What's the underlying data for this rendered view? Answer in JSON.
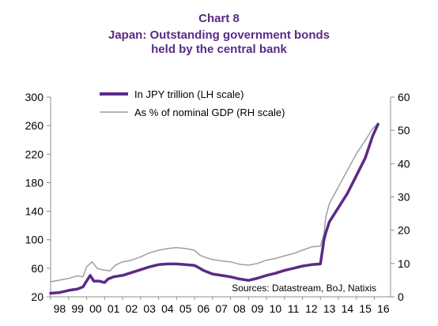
{
  "header": {
    "chart_label": "Chart 8",
    "title_line1": "Japan: Outstanding government bonds",
    "title_line2": "held by the central bank"
  },
  "source_note": "Sources: Datastream, BoJ, Natixis",
  "colors": {
    "title": "#5b2a86",
    "series_jpy": "#5b2a86",
    "series_gdp": "#9e9e9e",
    "axis": "#8c8c8c"
  },
  "chart_data": {
    "type": "line",
    "title": "Japan: Outstanding government bonds held by the central bank",
    "x_tick_labels": [
      "98",
      "99",
      "00",
      "01",
      "02",
      "03",
      "04",
      "05",
      "06",
      "07",
      "08",
      "09",
      "10",
      "11",
      "12",
      "13",
      "14",
      "15",
      "16"
    ],
    "xlim": [
      1998.0,
      2016.9
    ],
    "y_left": {
      "ylim": [
        20,
        300
      ],
      "ticks": [
        20,
        60,
        100,
        140,
        180,
        220,
        260,
        300
      ]
    },
    "y_right": {
      "ylim": [
        0,
        60
      ],
      "ticks": [
        0,
        10,
        20,
        30,
        40,
        50,
        60
      ]
    },
    "grid": false,
    "legend_position": "top-left",
    "series": [
      {
        "name": "In JPY trillion (LH scale)",
        "axis": "left",
        "color": "#5b2a86",
        "x": [
          1998.0,
          1998.5,
          1999.0,
          1999.5,
          1999.8,
          2000.0,
          2000.2,
          2000.4,
          2000.7,
          2001.0,
          2001.2,
          2001.5,
          2002.0,
          2002.5,
          2003.0,
          2003.5,
          2004.0,
          2004.5,
          2005.0,
          2005.5,
          2006.0,
          2006.3,
          2006.5,
          2007.0,
          2007.5,
          2008.0,
          2008.5,
          2009.0,
          2009.5,
          2010.0,
          2010.5,
          2011.0,
          2011.5,
          2012.0,
          2012.5,
          2013.0,
          2013.2,
          2013.3,
          2013.5,
          2014.0,
          2014.5,
          2015.0,
          2015.5,
          2015.9,
          2016.2
        ],
        "y": [
          25,
          26,
          29,
          31,
          34,
          42,
          50,
          42,
          42,
          40,
          45,
          48,
          50,
          54,
          58,
          62,
          65,
          66,
          66,
          65,
          64,
          60,
          57,
          52,
          50,
          48,
          45,
          43,
          46,
          50,
          53,
          57,
          60,
          63,
          65,
          66,
          100,
          110,
          125,
          145,
          165,
          190,
          215,
          245,
          262
        ]
      },
      {
        "name": "As % of nominal GDP (RH scale)",
        "axis": "right",
        "color": "#9e9e9e",
        "x": [
          1998.0,
          1998.5,
          1999.0,
          1999.5,
          1999.8,
          2000.0,
          2000.3,
          2000.6,
          2001.0,
          2001.3,
          2001.6,
          2002.0,
          2002.5,
          2003.0,
          2003.5,
          2004.0,
          2004.5,
          2005.0,
          2005.5,
          2006.0,
          2006.3,
          2006.6,
          2007.0,
          2007.5,
          2008.0,
          2008.5,
          2009.0,
          2009.5,
          2010.0,
          2010.5,
          2011.0,
          2011.5,
          2012.0,
          2012.5,
          2013.0,
          2013.2,
          2013.3,
          2013.5,
          2014.0,
          2014.5,
          2015.0,
          2015.5,
          2015.9,
          2016.2
        ],
        "y": [
          4.5,
          5,
          5.5,
          6.3,
          6,
          9,
          10.5,
          8.5,
          8,
          7.8,
          9.5,
          10.5,
          11,
          12,
          13.2,
          14,
          14.5,
          14.8,
          14.5,
          14,
          12.5,
          11.8,
          11.2,
          10.8,
          10.5,
          9.8,
          9.5,
          10,
          11,
          11.5,
          12.3,
          13,
          14,
          15,
          15.2,
          19,
          24,
          28,
          33,
          38,
          43,
          47,
          50.5,
          52
        ]
      }
    ]
  }
}
